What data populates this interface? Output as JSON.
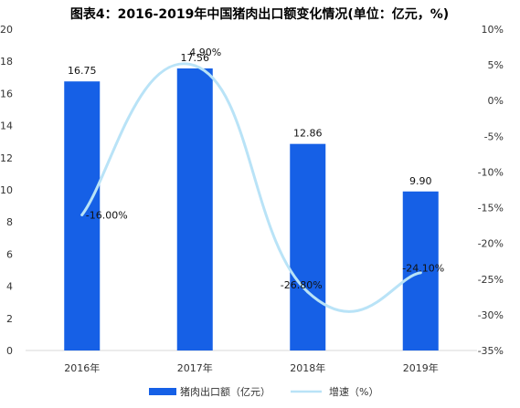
{
  "chart_data": {
    "type": "bar",
    "title": "图表4：2016-2019年中国猪肉出口额变化情况(单位：亿元，%)",
    "categories": [
      "2016年",
      "2017年",
      "2018年",
      "2019年"
    ],
    "series": [
      {
        "name": "猪肉出口额（亿元）",
        "type": "bar",
        "axis": "left",
        "values": [
          16.75,
          17.56,
          12.86,
          9.9
        ],
        "labels": [
          "16.75",
          "17.56",
          "12.86",
          "9.90"
        ],
        "color": "#1660E6"
      },
      {
        "name": "增速（%）",
        "type": "line",
        "axis": "right",
        "values": [
          -16.0,
          4.9,
          -26.8,
          -24.1
        ],
        "labels": [
          "-16.00%",
          "4.90%",
          "-26.80%",
          "-24.10%"
        ],
        "color": "#B9E3F7"
      }
    ],
    "y_left": {
      "min": 0,
      "max": 20,
      "step": 2,
      "tick_labels": [
        "0",
        "2",
        "4",
        "6",
        "8",
        "10",
        "12",
        "14",
        "16",
        "18",
        "20"
      ]
    },
    "y_right": {
      "min": -35,
      "max": 10,
      "step": 5,
      "tick_labels": [
        "-35%",
        "-30%",
        "-25%",
        "-20%",
        "-15%",
        "-10%",
        "-5%",
        "0%",
        "5%",
        "10%"
      ]
    },
    "legend_position": "bottom",
    "grid": false
  }
}
